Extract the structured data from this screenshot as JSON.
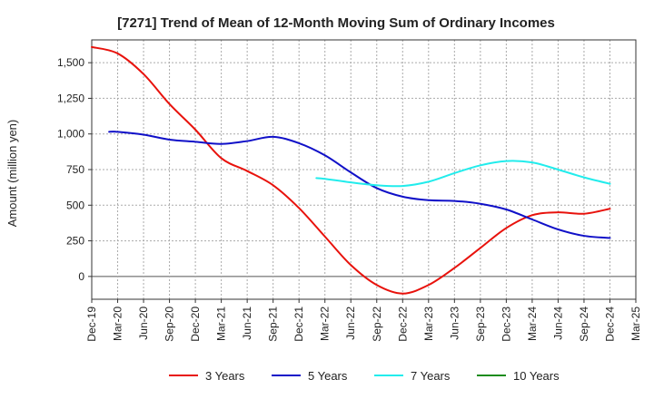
{
  "chart_data": {
    "type": "line",
    "title": "[7271]  Trend of Mean of 12-Month Moving Sum of Ordinary Incomes",
    "xlabel": "",
    "ylabel": "Amount (million yen)",
    "ylim": [
      -160,
      1660
    ],
    "yticks": [
      0,
      250,
      500,
      750,
      1000,
      1250,
      1500
    ],
    "ytick_labels": [
      "0",
      "250",
      "500",
      "750",
      "1,000",
      "1,250",
      "1,500"
    ],
    "xticks": [
      "Dec-19",
      "Mar-20",
      "Jun-20",
      "Sep-20",
      "Dec-20",
      "Mar-21",
      "Jun-21",
      "Sep-21",
      "Dec-21",
      "Mar-22",
      "Jun-22",
      "Sep-22",
      "Dec-22",
      "Mar-23",
      "Jun-23",
      "Sep-23",
      "Dec-23",
      "Mar-24",
      "Jun-24",
      "Sep-24",
      "Dec-24",
      "Mar-25"
    ],
    "grid": true,
    "legend_position": "bottom",
    "series": [
      {
        "name": "3 Years",
        "color": "#e8120c",
        "x": [
          0,
          1,
          2,
          3,
          4,
          5,
          6,
          7,
          8,
          9,
          10,
          11,
          12,
          13,
          14,
          15,
          16,
          17,
          18,
          19,
          20
        ],
        "values": [
          1610,
          1565,
          1420,
          1210,
          1030,
          830,
          740,
          640,
          480,
          280,
          80,
          -60,
          -120,
          -60,
          60,
          200,
          340,
          430,
          450,
          440,
          475
        ]
      },
      {
        "name": "5 Years",
        "color": "#1010c8",
        "x": [
          0.67,
          1,
          2,
          3,
          4,
          5,
          6,
          7,
          8,
          9,
          10,
          11,
          12,
          13,
          14,
          15,
          16,
          17,
          18,
          19,
          20
        ],
        "values": [
          1015,
          1015,
          995,
          960,
          945,
          930,
          950,
          980,
          935,
          850,
          730,
          620,
          560,
          535,
          530,
          510,
          470,
          400,
          330,
          285,
          270
        ]
      },
      {
        "name": "7 Years",
        "color": "#22ecec",
        "x": [
          8.67,
          9,
          10,
          11,
          12,
          13,
          14,
          15,
          16,
          17,
          18,
          19,
          20
        ],
        "values": [
          690,
          685,
          660,
          640,
          635,
          665,
          725,
          780,
          810,
          800,
          750,
          695,
          650
        ]
      },
      {
        "name": "10 Years",
        "color": "#1c8c1c",
        "x": [],
        "values": []
      }
    ]
  }
}
